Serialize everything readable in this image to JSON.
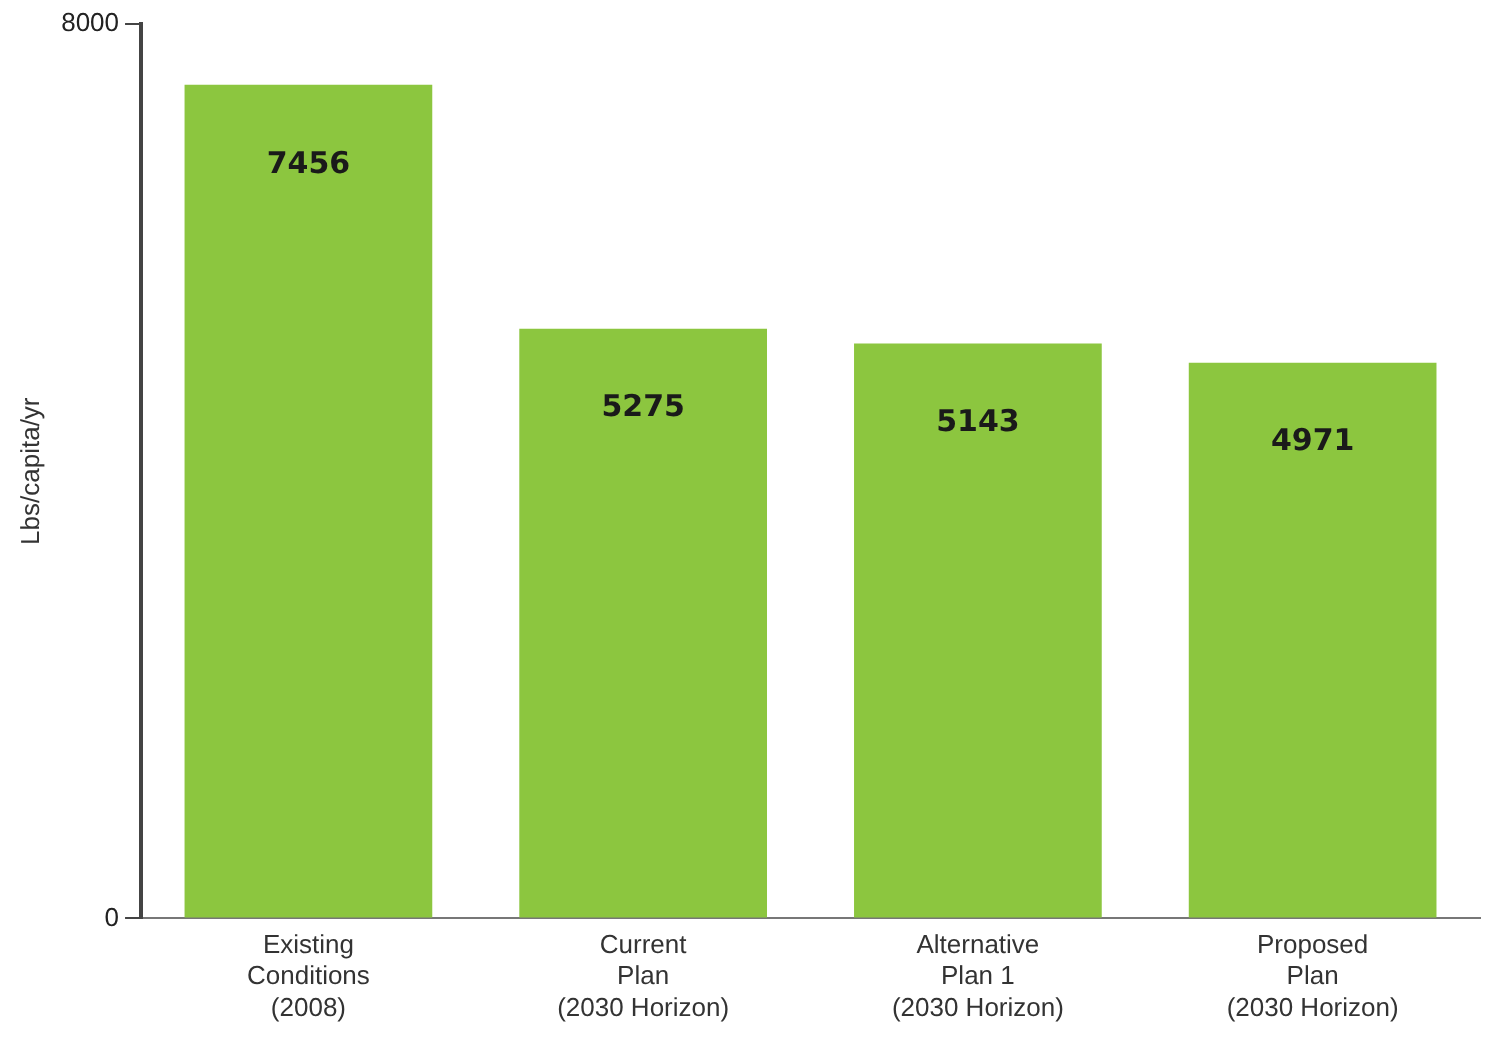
{
  "chart_data": {
    "type": "bar",
    "ylabel": "Lbs/capita/yr",
    "categories": [
      "Existing\nConditions\n(2008)",
      "Current\nPlan\n(2030 Horizon)",
      "Alternative\nPlan 1\n(2030 Horizon)",
      "Proposed\nPlan\n(2030 Horizon)"
    ],
    "values": [
      7456,
      5275,
      5143,
      4971
    ],
    "color": "#8cc63f",
    "ylim": [
      0,
      8000
    ],
    "yticks": [
      0,
      8000
    ],
    "grid": false,
    "legend": false,
    "data_labels": true
  }
}
